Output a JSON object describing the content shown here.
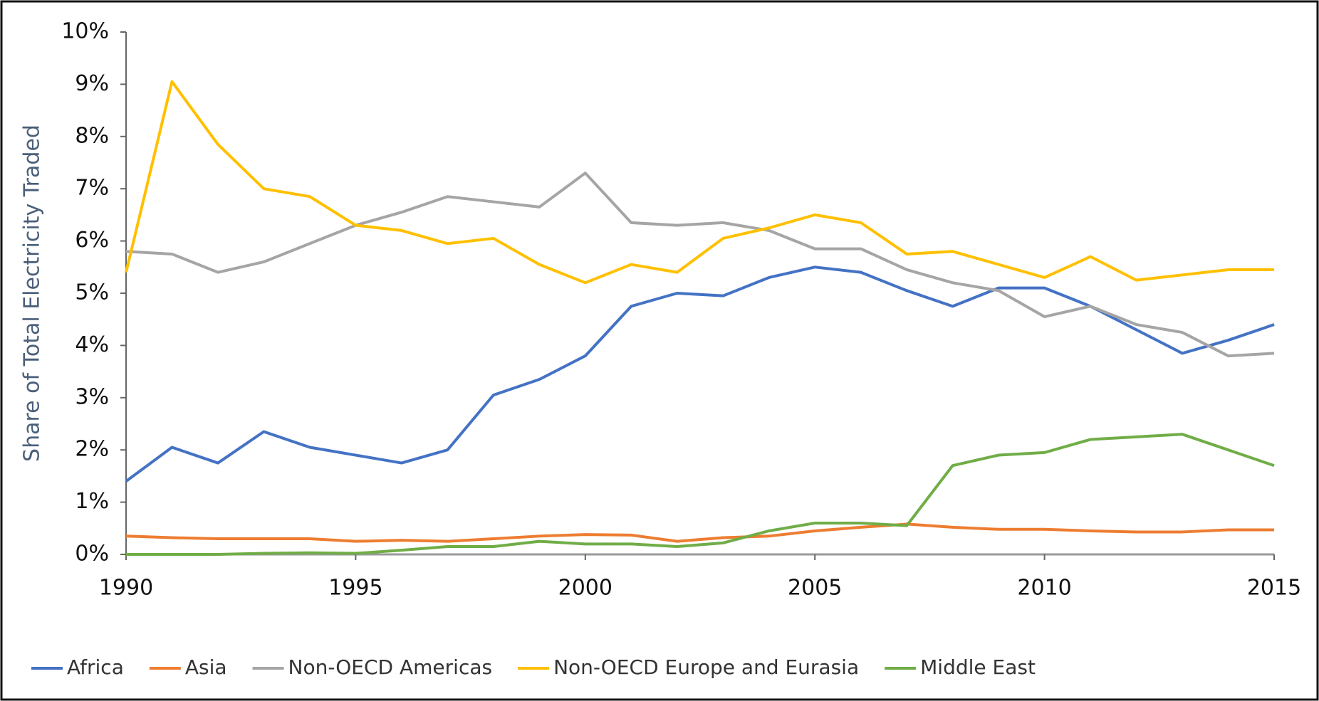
{
  "chart_data": {
    "type": "line",
    "y_label": "Share of Total Electricity Traded",
    "x": [
      1990,
      1991,
      1992,
      1993,
      1994,
      1995,
      1996,
      1997,
      1998,
      1999,
      2000,
      2001,
      2002,
      2003,
      2004,
      2005,
      2006,
      2007,
      2008,
      2009,
      2010,
      2011,
      2012,
      2013,
      2014,
      2015
    ],
    "xlim": [
      1990,
      2015
    ],
    "xticks": [
      1990,
      1995,
      2000,
      2005,
      2010,
      2015
    ],
    "ylim": [
      0,
      10
    ],
    "yticks": [
      {
        "value": 0,
        "label": "0%"
      },
      {
        "value": 1,
        "label": "1%"
      },
      {
        "value": 2,
        "label": "2%"
      },
      {
        "value": 3,
        "label": "3%"
      },
      {
        "value": 4,
        "label": "4%"
      },
      {
        "value": 5,
        "label": "5%"
      },
      {
        "value": 6,
        "label": "6%"
      },
      {
        "value": 7,
        "label": "7%"
      },
      {
        "value": 8,
        "label": "8%"
      },
      {
        "value": 9,
        "label": "9%"
      },
      {
        "value": 10,
        "label": "10%"
      }
    ],
    "grid": false,
    "legend": "bottom",
    "series": [
      {
        "name": "Africa",
        "color": "#4472c4",
        "values": [
          1.4,
          2.05,
          1.75,
          2.35,
          2.05,
          1.9,
          1.75,
          2.0,
          3.05,
          3.35,
          3.8,
          4.75,
          5.0,
          4.95,
          5.3,
          5.5,
          5.4,
          5.05,
          4.75,
          5.1,
          5.1,
          4.75,
          4.3,
          3.85,
          4.1,
          4.4
        ]
      },
      {
        "name": "Asia",
        "color": "#ed7d31",
        "values": [
          0.35,
          0.32,
          0.3,
          0.3,
          0.3,
          0.25,
          0.27,
          0.25,
          0.3,
          0.35,
          0.38,
          0.37,
          0.25,
          0.32,
          0.35,
          0.45,
          0.52,
          0.58,
          0.52,
          0.48,
          0.48,
          0.45,
          0.43,
          0.43,
          0.47,
          0.47
        ]
      },
      {
        "name": "Non-OECD Americas",
        "color": "#a5a5a5",
        "values": [
          5.8,
          5.75,
          5.4,
          5.6,
          5.95,
          6.3,
          6.55,
          6.85,
          6.75,
          6.65,
          7.3,
          6.35,
          6.3,
          6.35,
          6.2,
          5.85,
          5.85,
          5.45,
          5.2,
          5.05,
          4.55,
          4.75,
          4.4,
          4.25,
          3.8,
          3.85
        ]
      },
      {
        "name": "Non-OECD Europe and Eurasia",
        "color": "#ffc000",
        "values": [
          5.4,
          9.05,
          7.85,
          7.0,
          6.85,
          6.3,
          6.2,
          5.95,
          6.05,
          5.55,
          5.2,
          5.55,
          5.4,
          6.05,
          6.25,
          6.5,
          6.35,
          5.75,
          5.8,
          5.55,
          5.3,
          5.7,
          5.25,
          5.35,
          5.45,
          5.45
        ]
      },
      {
        "name": "Middle East",
        "color": "#70ad47",
        "values": [
          0,
          0,
          0,
          0.02,
          0.03,
          0.02,
          0.08,
          0.15,
          0.15,
          0.25,
          0.2,
          0.2,
          0.15,
          0.22,
          0.45,
          0.6,
          0.6,
          0.55,
          1.7,
          1.9,
          1.95,
          2.2,
          2.25,
          2.3,
          2.0,
          1.7
        ]
      }
    ]
  }
}
